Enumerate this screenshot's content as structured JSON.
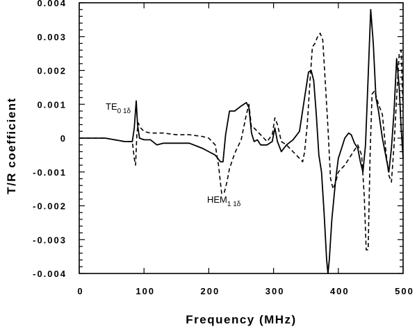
{
  "chart_data": {
    "type": "line",
    "title": "",
    "xlabel": "Frequency (MHz)",
    "ylabel": "T/R coefficient",
    "xlim": [
      0,
      500
    ],
    "ylim": [
      -0.004,
      0.004
    ],
    "xticks": [
      0,
      100,
      200,
      300,
      400,
      500
    ],
    "xtick_labels": [
      "0",
      "100",
      "200",
      "300",
      "400",
      "500"
    ],
    "yticks": [
      0.004,
      0.003,
      0.002,
      0.001,
      0,
      -0.001,
      -0.002,
      -0.003,
      -0.004
    ],
    "ytick_labels": [
      "0.004",
      "0.003",
      "0.002",
      "0.001",
      "0",
      "-0.001",
      "-0.002",
      "-0.003",
      "-0.004"
    ],
    "grid": false,
    "legend": null,
    "annotations": [
      {
        "text": "TE",
        "subscript": "0 1δ",
        "x": 88,
        "y": 0.00128
      },
      {
        "text": "HEM",
        "subscript": "1 1δ",
        "x": 225,
        "y": -0.00178
      }
    ],
    "series": [
      {
        "name": "solid",
        "style": "solid",
        "x": [
          0,
          40,
          70,
          82,
          85,
          88,
          90,
          93,
          100,
          110,
          120,
          130,
          150,
          170,
          190,
          200,
          210,
          218,
          222,
          226,
          232,
          240,
          250,
          258,
          262,
          266,
          270,
          275,
          280,
          290,
          298,
          302,
          306,
          312,
          320,
          330,
          340,
          348,
          354,
          358,
          362,
          366,
          370,
          374,
          378,
          382,
          384,
          386,
          390,
          396,
          400,
          405,
          410,
          416,
          420,
          425,
          430,
          434,
          438,
          442,
          446,
          450,
          454,
          458,
          462,
          468,
          474,
          478,
          482,
          486,
          490,
          494,
          497,
          500
        ],
        "y": [
          0,
          0,
          -0.0001,
          -0.0001,
          0.0003,
          0.0011,
          0.0004,
          0.0,
          -5e-05,
          -5e-05,
          -0.0002,
          -0.00015,
          -0.00015,
          -0.00015,
          -0.0003,
          -0.0004,
          -0.0005,
          -0.0007,
          -0.0007,
          0.0001,
          0.0008,
          0.0008,
          0.00095,
          0.00105,
          0.0009,
          0.00015,
          -0.0001,
          -5e-05,
          -0.0002,
          -0.0002,
          -0.0001,
          0.0003,
          -0.0001,
          -0.0004,
          -0.0002,
          -5e-05,
          0.0002,
          0.0012,
          0.00195,
          0.002,
          0.0017,
          0.0007,
          -0.0005,
          -0.001,
          -0.0022,
          -0.0036,
          -0.004,
          -0.0036,
          -0.0024,
          -0.0012,
          -0.0006,
          -0.0003,
          0.0,
          0.00015,
          0.0001,
          -0.00015,
          -0.0003,
          -0.0007,
          -0.001,
          -0.0002,
          0.0018,
          0.0038,
          0.0028,
          0.0012,
          0.0008,
          0.0,
          -0.0006,
          -0.001,
          -0.0003,
          0.0008,
          0.00235,
          0.0015,
          0.0003,
          -0.0006
        ]
      },
      {
        "name": "dashed",
        "style": "dashed",
        "x": [
          0,
          40,
          70,
          82,
          85,
          87,
          89,
          91,
          95,
          100,
          110,
          130,
          150,
          170,
          190,
          200,
          210,
          215,
          220,
          224,
          228,
          232,
          240,
          250,
          258,
          262,
          266,
          270,
          275,
          285,
          290,
          298,
          302,
          306,
          312,
          320,
          330,
          340,
          345,
          348,
          352,
          356,
          360,
          364,
          368,
          372,
          376,
          380,
          384,
          388,
          392,
          396,
          400,
          410,
          420,
          430,
          436,
          440,
          443,
          446,
          449,
          452,
          456,
          462,
          468,
          474,
          478,
          482,
          486,
          490,
          494,
          497,
          500
        ],
        "y": [
          0,
          0,
          -0.0001,
          -0.0001,
          -0.0006,
          -0.0008,
          0.0001,
          0.00045,
          0.0003,
          0.0002,
          0.00015,
          0.00015,
          0.0001,
          0.0001,
          5e-05,
          0.0,
          -0.0002,
          -0.0008,
          -0.00165,
          -0.0016,
          -0.0013,
          -0.0009,
          -0.00045,
          -5e-05,
          0.0007,
          0.001,
          0.0003,
          0.0003,
          0.0002,
          0.0,
          -0.0001,
          0.0001,
          0.0006,
          0.0004,
          -0.0001,
          -0.0002,
          -0.0004,
          -0.0006,
          -0.0007,
          -0.0004,
          0.0004,
          0.0016,
          0.0027,
          0.0028,
          0.003,
          0.0031,
          0.0029,
          0.0016,
          0.0003,
          -0.0012,
          -0.0015,
          -0.0013,
          -0.001,
          -0.0008,
          -0.0005,
          -0.0002,
          -0.0005,
          -0.0017,
          -0.0033,
          -0.0033,
          -0.0005,
          0.0013,
          0.0014,
          0.001,
          0.0007,
          -0.0005,
          -0.0011,
          -0.0013,
          -0.0002,
          0.0012,
          0.0025,
          0.0026,
          0.0008
        ]
      }
    ]
  },
  "colors": {
    "line": "#000000",
    "axis": "#000000",
    "background": "#ffffff"
  }
}
